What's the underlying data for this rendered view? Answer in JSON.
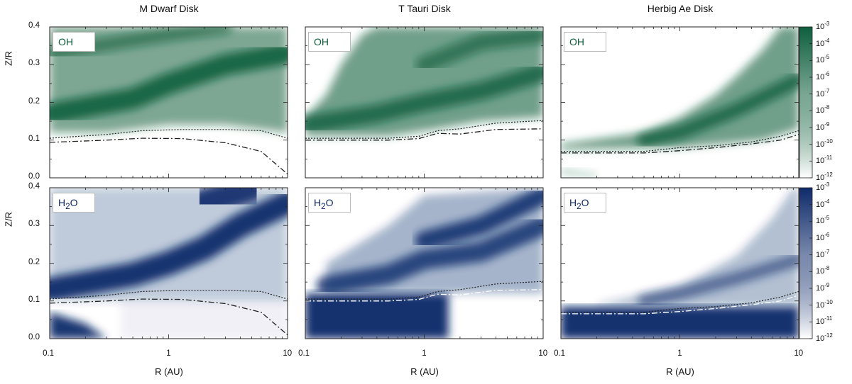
{
  "chart_data": {
    "type": "heatmap",
    "columns": [
      "M Dwarf Disk",
      "T Tauri Disk",
      "Herbig Ae Disk"
    ],
    "rows": [
      {
        "species": "OH",
        "species_html": "OH",
        "colormap": [
          "#ffffff",
          "#0e5f3d"
        ]
      },
      {
        "species": "H2O",
        "species_html": "H<sub>2</sub>O",
        "colormap": [
          "#ffffff",
          "#0e2a6a"
        ]
      }
    ],
    "xlabel": "R (AU)",
    "ylabel": "Z/R",
    "xscale": "log",
    "xlim": [
      0.1,
      10
    ],
    "ylim": [
      0.0,
      0.4
    ],
    "xticks": [
      "0.1",
      "1",
      "10"
    ],
    "xtick_values": [
      0.1,
      1,
      10
    ],
    "yticks": [
      "0.0",
      "0.1",
      "0.2",
      "0.3",
      "0.4"
    ],
    "ytick_values": [
      0.0,
      0.1,
      0.2,
      0.3,
      0.4
    ],
    "colorbar": {
      "label_base": "10",
      "exponents": [
        "-3",
        "-4",
        "-5",
        "-6",
        "-7",
        "-8",
        "-9",
        "-10",
        "-11",
        "-12"
      ],
      "range_log10": [
        -12,
        -3
      ]
    },
    "boundary_lines": {
      "M Dwarf Disk": {
        "dotted": [
          [
            0.1,
            0.105
          ],
          [
            0.3,
            0.115
          ],
          [
            0.6,
            0.125
          ],
          [
            1.3,
            0.128
          ],
          [
            3,
            0.128
          ],
          [
            6,
            0.125
          ],
          [
            10,
            0.105
          ]
        ],
        "dashdot": [
          [
            0.1,
            0.094
          ],
          [
            0.3,
            0.1
          ],
          [
            0.6,
            0.105
          ],
          [
            1.3,
            0.104
          ],
          [
            3,
            0.093
          ],
          [
            6,
            0.07
          ],
          [
            10,
            0.01
          ]
        ]
      },
      "T Tauri Disk": {
        "dotted": [
          [
            0.1,
            0.105
          ],
          [
            0.5,
            0.105
          ],
          [
            0.9,
            0.11
          ],
          [
            1.3,
            0.125
          ],
          [
            2,
            0.13
          ],
          [
            4,
            0.145
          ],
          [
            10,
            0.152
          ]
        ],
        "dashdot": [
          [
            0.1,
            0.1
          ],
          [
            0.5,
            0.1
          ],
          [
            0.9,
            0.104
          ],
          [
            1.3,
            0.118
          ],
          [
            2,
            0.116
          ],
          [
            4,
            0.128
          ],
          [
            10,
            0.13
          ]
        ]
      },
      "Herbig Ae Disk": {
        "dotted": [
          [
            0.1,
            0.07
          ],
          [
            0.5,
            0.07
          ],
          [
            1,
            0.08
          ],
          [
            2,
            0.085
          ],
          [
            4,
            0.095
          ],
          [
            7,
            0.11
          ],
          [
            10,
            0.125
          ]
        ],
        "dashdot": [
          [
            0.1,
            0.066
          ],
          [
            0.5,
            0.066
          ],
          [
            1,
            0.072
          ],
          [
            2,
            0.08
          ],
          [
            4,
            0.09
          ],
          [
            7,
            0.1
          ],
          [
            10,
            0.115
          ]
        ]
      }
    }
  }
}
